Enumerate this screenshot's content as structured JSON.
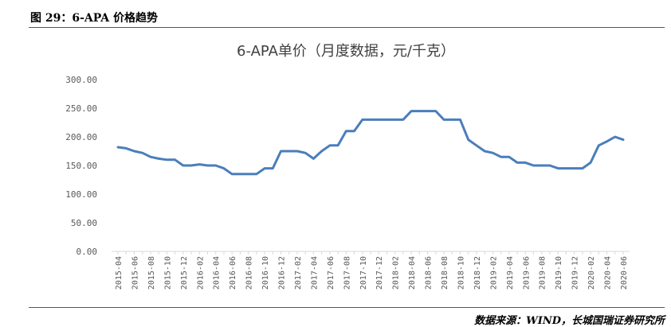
{
  "figure": {
    "label": "图 29：6-APA 价格趋势",
    "source": "数据来源：WIND，长城国瑞证券研究所"
  },
  "colors": {
    "line": "#4a7ebb",
    "axis": "#d9d9d9",
    "rule": "#2e5f8a"
  },
  "chart_data": {
    "type": "line",
    "title": "6-APA单价（月度数据，元/千克）",
    "xlabel": "",
    "ylabel": "",
    "ylim": [
      0,
      300
    ],
    "y_ticks": [
      "0.00",
      "50.00",
      "100.00",
      "150.00",
      "200.00",
      "250.00",
      "300.00"
    ],
    "grid": false,
    "x": [
      "2015-04",
      "2015-05",
      "2015-06",
      "2015-07",
      "2015-08",
      "2015-09",
      "2015-10",
      "2015-11",
      "2015-12",
      "2016-01",
      "2016-02",
      "2016-03",
      "2016-04",
      "2016-05",
      "2016-06",
      "2016-07",
      "2016-08",
      "2016-09",
      "2016-10",
      "2016-11",
      "2016-12",
      "2017-01",
      "2017-02",
      "2017-03",
      "2017-04",
      "2017-05",
      "2017-06",
      "2017-07",
      "2017-08",
      "2017-09",
      "2017-10",
      "2017-11",
      "2017-12",
      "2018-01",
      "2018-02",
      "2018-03",
      "2018-04",
      "2018-05",
      "2018-06",
      "2018-07",
      "2018-08",
      "2018-09",
      "2018-10",
      "2018-11",
      "2018-12",
      "2019-01",
      "2019-02",
      "2019-03",
      "2019-04",
      "2019-05",
      "2019-06",
      "2019-07",
      "2019-08",
      "2019-09",
      "2019-10",
      "2019-11",
      "2019-12",
      "2020-01",
      "2020-02",
      "2020-03",
      "2020-04",
      "2020-05",
      "2020-06"
    ],
    "x_tick_labels": [
      "2015-04",
      "2015-06",
      "2015-08",
      "2015-10",
      "2015-12",
      "2016-02",
      "2016-04",
      "2016-06",
      "2016-08",
      "2016-10",
      "2016-12",
      "2017-02",
      "2017-04",
      "2017-06",
      "2017-08",
      "2017-10",
      "2017-12",
      "2018-02",
      "2018-04",
      "2018-06",
      "2018-08",
      "2018-10",
      "2018-12",
      "2019-02",
      "2019-04",
      "2019-06",
      "2019-08",
      "2019-10",
      "2019-12",
      "2020-02",
      "2020-04",
      "2020-06"
    ],
    "series": [
      {
        "values": [
          182,
          180,
          175,
          172,
          165,
          162,
          160,
          160,
          150,
          150,
          152,
          150,
          150,
          145,
          135,
          135,
          135,
          135,
          145,
          145,
          175,
          175,
          175,
          172,
          162,
          175,
          185,
          185,
          210,
          210,
          230,
          230,
          230,
          230,
          230,
          230,
          245,
          245,
          245,
          245,
          230,
          230,
          230,
          195,
          185,
          175,
          172,
          165,
          165,
          155,
          155,
          150,
          150,
          150,
          145,
          145,
          145,
          145,
          155,
          185,
          192,
          200,
          195
        ]
      }
    ]
  }
}
